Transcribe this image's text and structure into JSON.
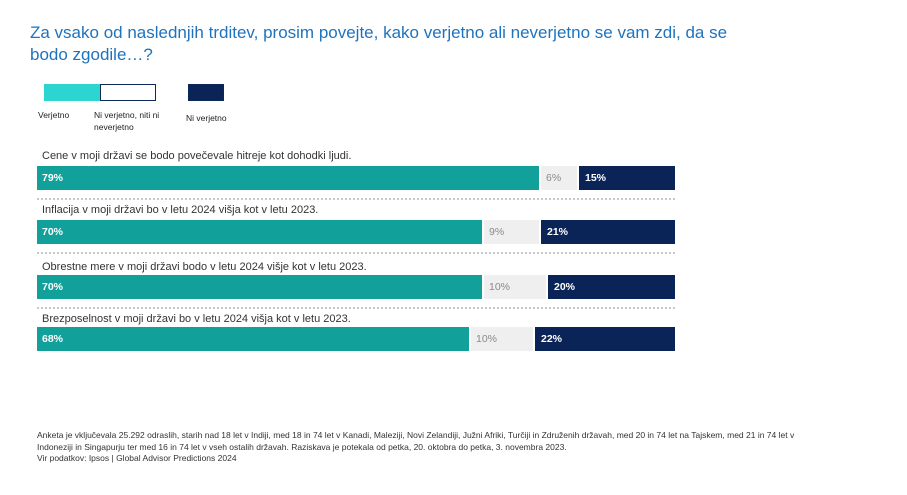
{
  "title": "Za vsako od naslednjih trditev, prosim povejte, kako verjetno ali neverjetno se vam zdi, da se bodo zgodile…?",
  "colors": {
    "likely": "#11A09A",
    "neutral": "#EFEFEF",
    "unlikely": "#0A2458",
    "title": "#1E73BE"
  },
  "legend": [
    {
      "label": "Verjetno",
      "color": "#2DD5D0"
    },
    {
      "label": "Ni verjetno, niti ni neverjetno",
      "color": "#FFFFFF"
    },
    {
      "label": "Ni verjetno",
      "color": "#0A2458"
    }
  ],
  "chart_data": {
    "type": "bar",
    "orientation": "horizontal",
    "stacked": true,
    "title": "Za vsako od naslednjih trditev, prosim povejte, kako verjetno ali neverjetno se vam zdi, da se bodo zgodile…?",
    "categories": [
      "Cene v moji državi se bodo povečevale hitreje kot dohodki ljudi.",
      "Inflacija v moji državi bo v letu 2024 višja kot v letu 2023.",
      "Obrestne mere v moji državi bodo v letu 2024 višje kot v letu 2023.",
      "Brezposelnost v moji državi bo v letu 2024 višja kot v letu 2023."
    ],
    "series": [
      {
        "name": "Verjetno",
        "values": [
          79,
          70,
          70,
          68
        ],
        "labels": [
          "79%",
          "70%",
          "70%",
          "68%"
        ]
      },
      {
        "name": "Ni verjetno, niti ni neverjetno",
        "values": [
          6,
          9,
          10,
          10
        ],
        "labels": [
          "6%",
          "9%",
          "10%",
          "10%"
        ]
      },
      {
        "name": "Ni verjetno",
        "values": [
          15,
          21,
          20,
          22
        ],
        "labels": [
          "15%",
          "21%",
          "20%",
          "22%"
        ]
      }
    ],
    "xlim": [
      0,
      100
    ]
  },
  "footnote": {
    "line1": "Anketa je vključevala 25.292 odraslih, starih nad 18 let v Indiji, med 18 in 74 let v Kanadi, Maleziji, Novi Zelandiji, Južni Afriki, Turčiji in Združenih državah, med 20 in 74 let na Tajskem, med 21 in 74 let v",
    "line2": "Indoneziji in Singapurju ter med 16 in 74 let v vseh ostalih državah. Raziskava je potekala od petka, 20. oktobra do petka, 3. novembra 2023.",
    "line3": "Vir podatkov: Ipsos | Global Advisor Predictions 2024"
  }
}
